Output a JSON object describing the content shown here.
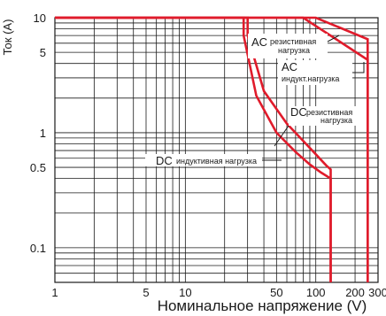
{
  "chart_data": {
    "type": "line",
    "xscale": "log",
    "yscale": "log",
    "xlim": [
      1,
      300
    ],
    "ylim": [
      0.05,
      10
    ],
    "xlabel": "Номинальное напряжение (V)",
    "ylabel": "Ток (A)",
    "grid": true,
    "x_tick_labels": [
      {
        "value": 1,
        "label": "1"
      },
      {
        "value": 5,
        "label": "5"
      },
      {
        "value": 10,
        "label": "10"
      },
      {
        "value": 50,
        "label": "50"
      },
      {
        "value": 100,
        "label": "100"
      },
      {
        "value": 200,
        "label": "200"
      },
      {
        "value": 300,
        "label": "300"
      }
    ],
    "y_tick_labels": [
      {
        "value": 10,
        "label": "10"
      },
      {
        "value": 5,
        "label": "5"
      },
      {
        "value": 1,
        "label": "1"
      },
      {
        "value": 0.5,
        "label": "0.5"
      },
      {
        "value": 0.1,
        "label": "0.1"
      }
    ],
    "series": [
      {
        "color": "#e01b2b",
        "x": [
          1,
          100,
          250,
          250
        ],
        "y": [
          10,
          10,
          6.5,
          0.05
        ]
      },
      {
        "color": "#e01b2b",
        "x": [
          1,
          80,
          250,
          250
        ],
        "y": [
          10,
          10,
          4.3,
          0.05
        ]
      },
      {
        "color": "#e01b2b",
        "x": [
          1,
          30,
          30,
          40,
          60,
          80,
          100,
          120,
          130,
          130
        ],
        "y": [
          10,
          10,
          7,
          2.3,
          1.2,
          0.85,
          0.65,
          0.52,
          0.48,
          0.05
        ]
      },
      {
        "color": "#e01b2b",
        "x": [
          1,
          28,
          28,
          35,
          50,
          70,
          90,
          110,
          130,
          130
        ],
        "y": [
          10,
          10,
          7,
          2.1,
          1.0,
          0.68,
          0.53,
          0.45,
          0.4,
          0.05
        ]
      }
    ],
    "annotations": [
      {
        "main": "AC",
        "sub": "резистивная",
        "sub2": "нагрузка"
      },
      {
        "main": "AC",
        "sub": "индукт.нагрузка"
      },
      {
        "main": "DC",
        "sub": "резистивная",
        "sub2": "нагрузка"
      },
      {
        "main": "DC",
        "sub": "индуктивная нагрузка"
      }
    ]
  }
}
